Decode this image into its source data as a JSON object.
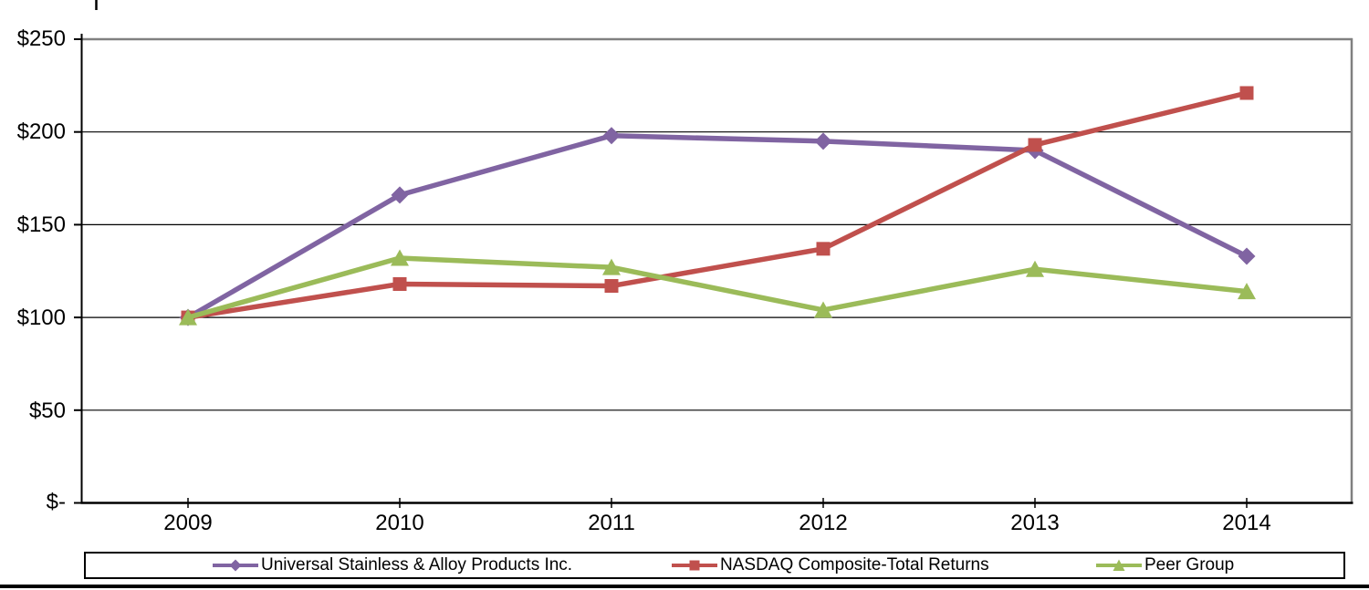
{
  "chart_data": {
    "type": "line",
    "title": "",
    "xlabel": "",
    "ylabel": "",
    "x_tick_labels": [
      "2009",
      "2010",
      "2011",
      "2012",
      "2013",
      "2014"
    ],
    "y_tick_labels": [
      "$250",
      "$200",
      "$150",
      "$100",
      "$50",
      "$-"
    ],
    "y_tick_values": [
      250,
      200,
      150,
      100,
      50,
      0
    ],
    "ylim": [
      0,
      250
    ],
    "grid": "horizontal",
    "legend_position": "bottom",
    "series": [
      {
        "name": "Universal Stainless & Alloy Products Inc.",
        "marker": "diamond",
        "color": "#8064A2",
        "values": [
          100,
          166,
          198,
          195,
          190,
          133
        ]
      },
      {
        "name": "NASDAQ Composite-Total Returns",
        "marker": "square",
        "color": "#C0504D",
        "values": [
          100,
          118,
          117,
          137,
          193,
          221
        ]
      },
      {
        "name": "Peer Group",
        "marker": "triangle",
        "color": "#9BBB59",
        "values": [
          100,
          132,
          127,
          104,
          126,
          114
        ]
      }
    ],
    "colors": {
      "gridline": "#000000",
      "plot_border": "#808080",
      "axis": "#000000",
      "background": "#FFFFFF"
    }
  }
}
